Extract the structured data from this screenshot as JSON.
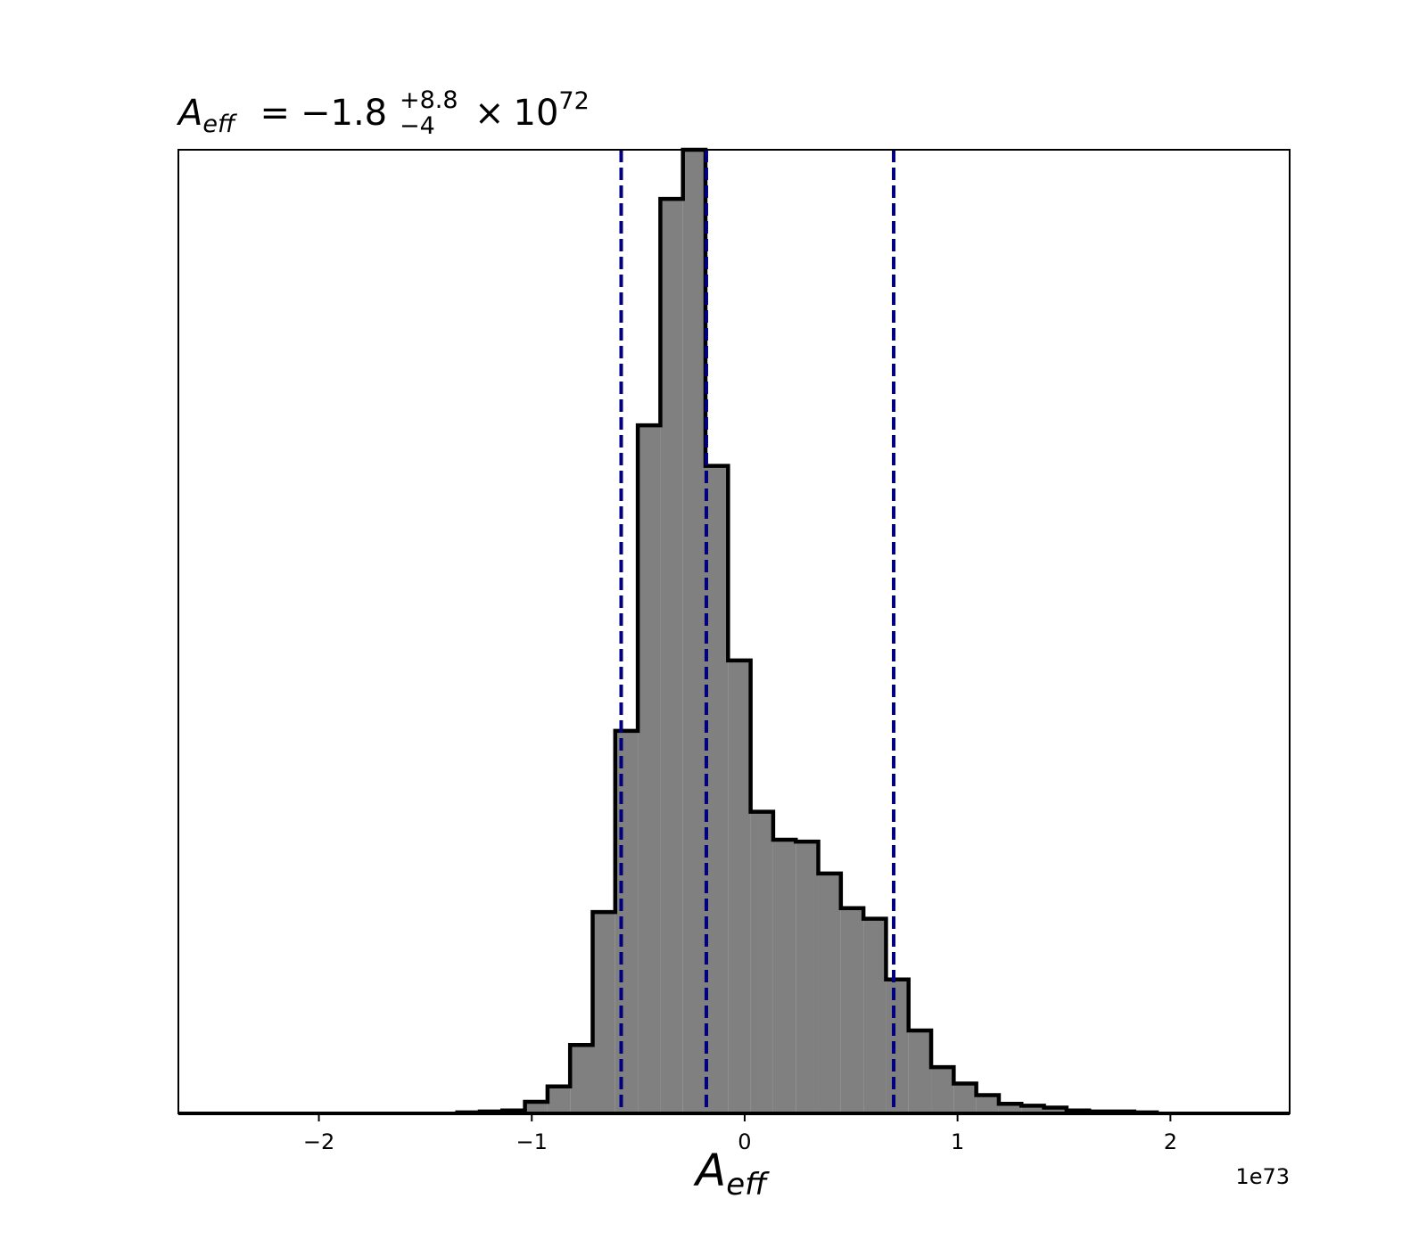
{
  "chart_data": {
    "type": "histogram",
    "title": {
      "symbol": "A",
      "symbol_sub": "eff",
      "equals": "=",
      "value": "−1.8",
      "upper": "+8.8",
      "lower": "−4",
      "times": "×",
      "base": "10",
      "exponent": "72"
    },
    "xlabel": {
      "symbol": "A",
      "symbol_sub": "eff"
    },
    "offset_label": "1e73",
    "x_scale_multiplier": 1e+73,
    "xlim": [
      -2.66,
      2.56
    ],
    "ylim": [
      0,
      1.0
    ],
    "xticks": [
      -2,
      -1,
      0,
      1,
      2
    ],
    "xtick_labels": [
      "−2",
      "−1",
      "0",
      "1",
      "2"
    ],
    "y_axis_visible": false,
    "bin_edges": [
      -1.35,
      -1.244,
      -1.138,
      -1.032,
      -0.926,
      -0.82,
      -0.714,
      -0.608,
      -0.502,
      -0.396,
      -0.29,
      -0.184,
      -0.078,
      0.028,
      0.134,
      0.24,
      0.346,
      0.452,
      0.558,
      0.664,
      0.77,
      0.876,
      0.982,
      1.088,
      1.194,
      1.3,
      1.406,
      1.512,
      1.618,
      1.724,
      1.83,
      1.936
    ],
    "counts": [
      0.001,
      0.002,
      0.003,
      0.012,
      0.028,
      0.071,
      0.209,
      0.397,
      0.714,
      0.949,
      1.0,
      0.672,
      0.47,
      0.313,
      0.284,
      0.282,
      0.249,
      0.213,
      0.202,
      0.139,
      0.086,
      0.048,
      0.031,
      0.019,
      0.01,
      0.008,
      0.006,
      0.003,
      0.002,
      0.002,
      0.001
    ],
    "fill_color": "#808080",
    "edge_color": "#000000",
    "quantile_lines": [
      -0.58,
      -0.18,
      0.7
    ],
    "quantile_line_color": "#000080",
    "quantile_line_style": "dashed"
  }
}
